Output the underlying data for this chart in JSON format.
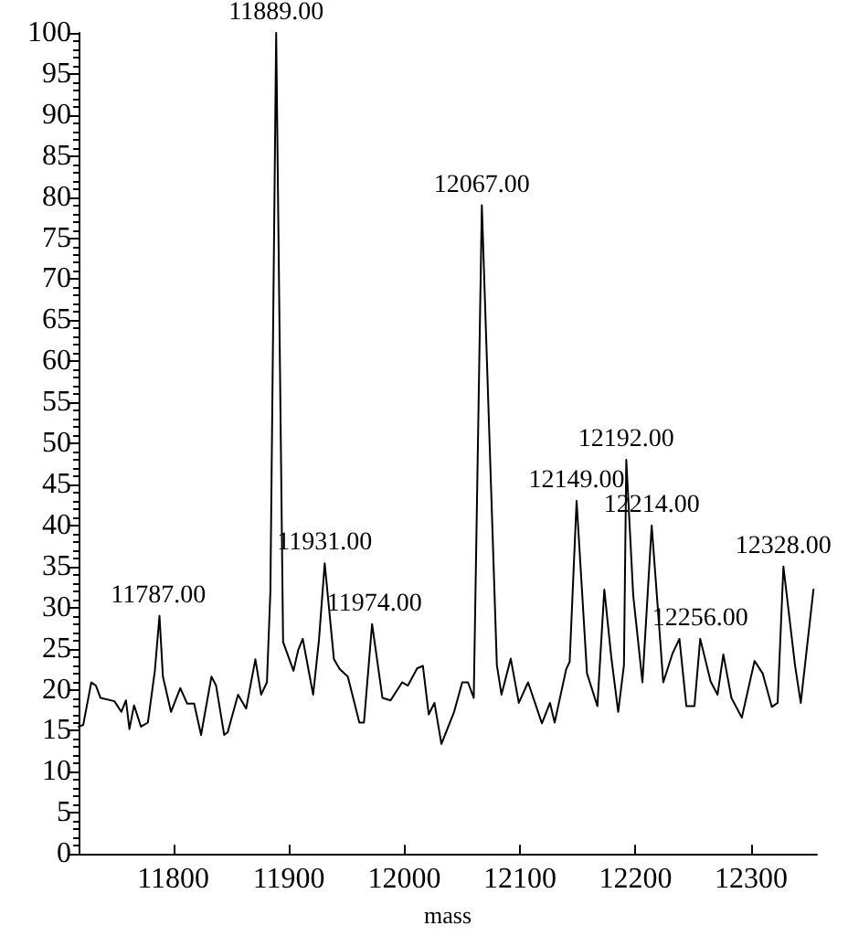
{
  "chart_data": {
    "type": "line",
    "xlabel": "mass",
    "xlim": [
      11718,
      12357
    ],
    "xticks": [
      11800,
      11900,
      12000,
      12100,
      12200,
      12300
    ],
    "ylim": [
      0,
      100
    ],
    "yticks": [
      0,
      5,
      10,
      15,
      20,
      25,
      30,
      35,
      40,
      45,
      50,
      55,
      60,
      65,
      70,
      75,
      80,
      85,
      90,
      95,
      100
    ],
    "grid": false,
    "marker": "none",
    "line_style": "solid",
    "series": [
      {
        "color": "#000000",
        "x": [
          11718,
          11722,
          11729,
          11733,
          11737,
          11749,
          11755,
          11759,
          11762,
          11766,
          11772,
          11778,
          11784,
          11788,
          11791,
          11798,
          11806,
          11812,
          11818,
          11824,
          11833,
          11837,
          11844,
          11847,
          11856,
          11863,
          11871,
          11876,
          11881,
          11884,
          11889,
          11895,
          11904,
          11908,
          11912,
          11921,
          11926,
          11931,
          11939,
          11944,
          11951,
          11961,
          11965,
          11972,
          11981,
          11988,
          11998,
          12003,
          12011,
          12016,
          12021,
          12026,
          12032,
          12043,
          12050,
          12055,
          12060,
          12067,
          12080,
          12084,
          12092,
          12099,
          12107,
          12119,
          12126,
          12130,
          12140,
          12143,
          12149,
          12158,
          12167,
          12173,
          12179,
          12185,
          12190,
          12192,
          12198,
          12206,
          12214,
          12220,
          12224,
          12232,
          12238,
          12244,
          12251,
          12256,
          12265,
          12271,
          12276,
          12283,
          12292,
          12303,
          12310,
          12318,
          12323,
          12328,
          12338,
          12343,
          12354
        ],
        "values": [
          15.5,
          15.7,
          20.9,
          20.5,
          19,
          18.6,
          17.3,
          18.7,
          15.2,
          18.1,
          15.5,
          16,
          22.3,
          29,
          21.6,
          17.3,
          20.2,
          18.3,
          18.3,
          14.5,
          21.6,
          20.5,
          14.5,
          14.8,
          19.4,
          17.7,
          23.7,
          19.4,
          20.9,
          32,
          100,
          25.8,
          22.3,
          24.8,
          26.2,
          19.4,
          26,
          35.4,
          23.7,
          22.5,
          21.6,
          16,
          16,
          28,
          19,
          18.7,
          20.9,
          20.5,
          22.6,
          22.9,
          17,
          18.4,
          13.4,
          17.3,
          20.9,
          20.9,
          19,
          79,
          23,
          19.4,
          23.8,
          18.4,
          20.9,
          15.9,
          18.4,
          16,
          22.5,
          23.4,
          43,
          22,
          18,
          32.2,
          24,
          17.3,
          23,
          48,
          31.5,
          20.9,
          40,
          28.6,
          20.9,
          24.4,
          26.2,
          18,
          18,
          26.2,
          21,
          19.4,
          24.3,
          19,
          16.6,
          23.5,
          22,
          17.9,
          18.4,
          35,
          23,
          18.4,
          32.2
        ]
      }
    ],
    "annotations": [
      {
        "text": "11787.00",
        "x": 11787,
        "y": 29
      },
      {
        "text": "11889.00",
        "x": 11889,
        "y": 100
      },
      {
        "text": "11931.00",
        "x": 11931,
        "y": 35.4
      },
      {
        "text": "11974.00",
        "x": 11974,
        "y": 28
      },
      {
        "text": "12067.00",
        "x": 12067,
        "y": 79
      },
      {
        "text": "12149.00",
        "x": 12149,
        "y": 43
      },
      {
        "text": "12192.00",
        "x": 12192,
        "y": 48
      },
      {
        "text": "12214.00",
        "x": 12214,
        "y": 40
      },
      {
        "text": "12256.00",
        "x": 12256,
        "y": 26.2
      },
      {
        "text": "12328.00",
        "x": 12328,
        "y": 35
      }
    ]
  }
}
